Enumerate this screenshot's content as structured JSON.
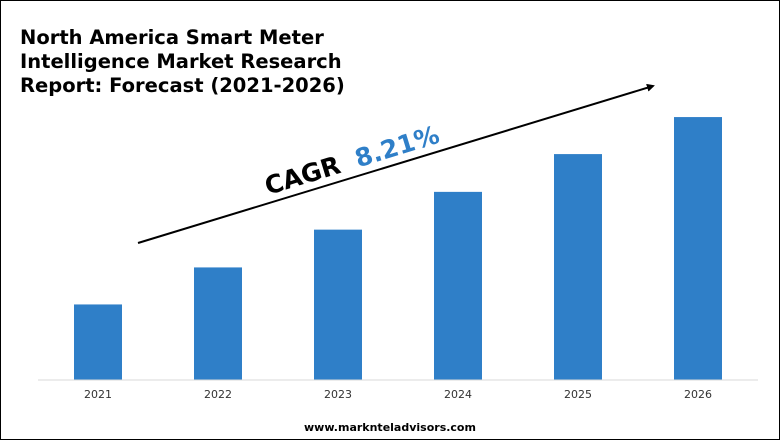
{
  "chart_data": {
    "type": "bar",
    "title_lines": [
      "North America Smart Meter",
      "Intelligence Market Research",
      "Report: Forecast (2021-2026)"
    ],
    "categories": [
      "2021",
      "2022",
      "2023",
      "2024",
      "2025",
      "2026"
    ],
    "values": [
      1.0,
      1.49,
      1.99,
      2.49,
      2.99,
      3.48
    ],
    "ylim": [
      0,
      3.6
    ],
    "xlabel": "",
    "ylabel": "",
    "grid": false,
    "legend": "none",
    "annotation": {
      "prefix": "CAGR",
      "value": "8.21%"
    }
  },
  "footer": "www.marknteladvisors.com",
  "colors": {
    "bar": "#2f7fc8",
    "cagr_value": "#2f7fc8",
    "arrow": "#000000",
    "axis": "#d9d9d9"
  }
}
